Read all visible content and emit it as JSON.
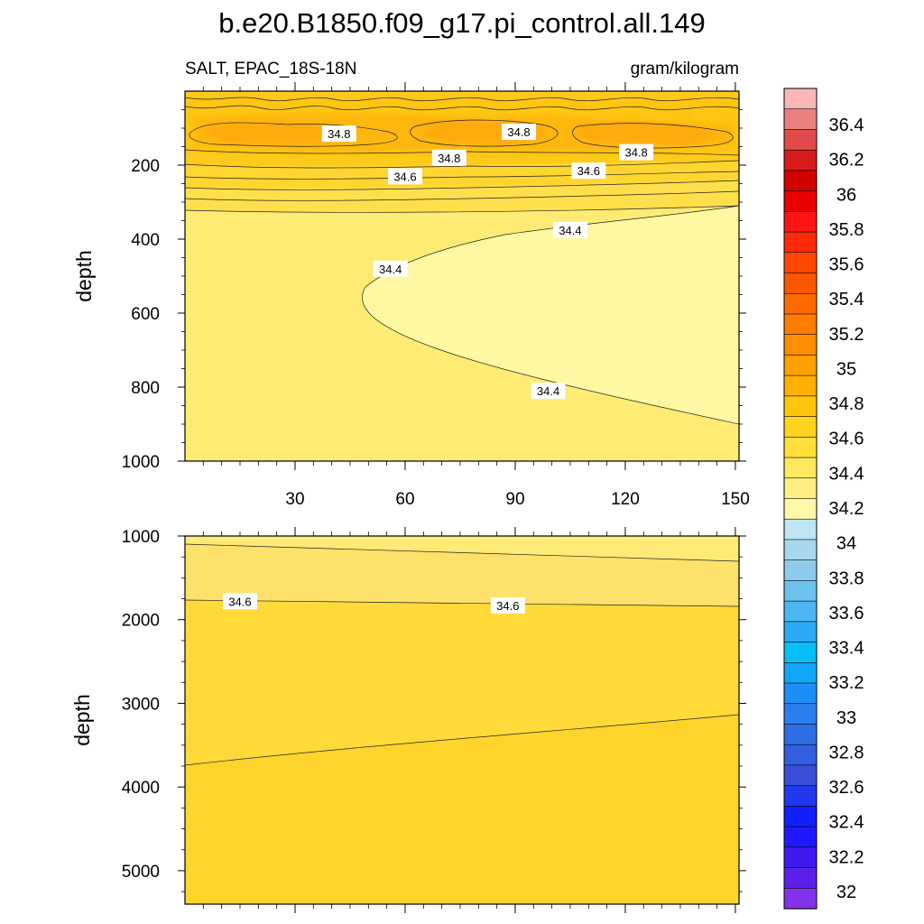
{
  "title": "b.e20.B1850.f09_g17.pi_control.all.149",
  "left_string": "SALT, EPAC_18S-18N",
  "right_string": "gram/kilogram",
  "chart_data": [
    {
      "type": "heatmap",
      "panel": "upper",
      "ylabel": "depth",
      "xlim": [
        0,
        151
      ],
      "ylim": [
        1000,
        0
      ],
      "x_ticks": [
        "30",
        "60",
        "90",
        "120",
        "150"
      ],
      "y_ticks": [
        "200",
        "400",
        "600",
        "800",
        "1000"
      ],
      "contour_labels": [
        {
          "text": "34.8",
          "x": 42,
          "y": 115
        },
        {
          "text": "34.8",
          "x": 91,
          "y": 110
        },
        {
          "text": "34.8",
          "x": 123,
          "y": 165
        },
        {
          "text": "34.8",
          "x": 72,
          "y": 180
        },
        {
          "text": "34.6",
          "x": 60,
          "y": 230
        },
        {
          "text": "34.6",
          "x": 110,
          "y": 215
        },
        {
          "text": "34.4",
          "x": 105,
          "y": 375
        },
        {
          "text": "34.4",
          "x": 56,
          "y": 480
        },
        {
          "text": "34.4",
          "x": 99,
          "y": 810
        }
      ]
    },
    {
      "type": "heatmap",
      "panel": "lower",
      "ylabel": "depth",
      "xlim": [
        0,
        151
      ],
      "ylim": [
        5400,
        1000
      ],
      "y_ticks": [
        "1000",
        "2000",
        "3000",
        "4000",
        "5000"
      ],
      "contour_labels": [
        {
          "text": "34.6",
          "x": 15,
          "y": 1780
        },
        {
          "text": "34.6",
          "x": 88,
          "y": 1830
        }
      ]
    }
  ],
  "colorbar": {
    "labels": [
      "36.4",
      "36.2",
      "36",
      "35.8",
      "35.6",
      "35.4",
      "35.2",
      "35",
      "34.8",
      "34.6",
      "34.4",
      "34.2",
      "34",
      "33.8",
      "33.6",
      "33.4",
      "33.2",
      "33",
      "32.8",
      "32.6",
      "32.4",
      "32.2",
      "32"
    ],
    "colors_top_to_bottom": [
      "#fbb6b6",
      "#ec8080",
      "#e24b4b",
      "#d71c1c",
      "#d30000",
      "#ea0000",
      "#ff1414",
      "#ff2a0a",
      "#ff4800",
      "#ff5600",
      "#ff6a00",
      "#ff7c00",
      "#ff8d00",
      "#ffa000",
      "#ffb000",
      "#ffc50d",
      "#ffd320",
      "#ffde38",
      "#fee85e",
      "#feef80",
      "#fef8a8",
      "#bfe4f2",
      "#a8d8ee",
      "#8ecbea",
      "#6ec2ee",
      "#4cb6f2",
      "#28aaf6",
      "#08bef8",
      "#12a6fa",
      "#1c8ef8",
      "#2a7ef0",
      "#2f6ee6",
      "#345ee0",
      "#3a4ed8",
      "#2236ec",
      "#1020ff",
      "#2018ff",
      "#4018f0",
      "#5a20ea",
      "#8232e8"
    ]
  },
  "colors": {
    "upper_fill": "#feeb74",
    "low_salt_tongue": "#fef8a0",
    "upper_band_1": "#ffd630",
    "upper_band_2": "#ffc410",
    "upper_band_3": "#ffb50b",
    "lower_mid": "#ffe04a",
    "lower_deep": "#ffd52c"
  }
}
